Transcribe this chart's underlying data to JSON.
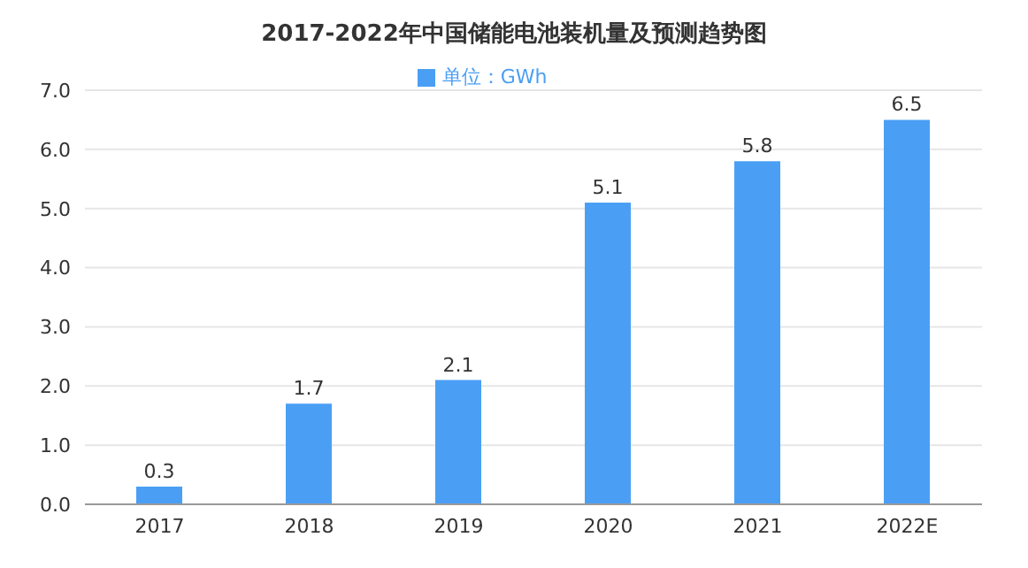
{
  "chart_data": {
    "type": "bar",
    "title": "2017-2022年中国储能电池装机量及预测趋势图",
    "categories": [
      "2017",
      "2018",
      "2019",
      "2020",
      "2021",
      "2022E"
    ],
    "series": [
      {
        "name": "单位：GWh",
        "color": "#4a9ff5",
        "values": [
          0.3,
          1.7,
          2.1,
          5.1,
          5.8,
          6.5
        ]
      }
    ],
    "ylim": [
      0,
      7
    ],
    "yticks": [
      {
        "value": 0,
        "label": "0.0"
      },
      {
        "value": 1,
        "label": "1.0"
      },
      {
        "value": 2,
        "label": "2.0"
      },
      {
        "value": 3,
        "label": "3.0"
      },
      {
        "value": 4,
        "label": "4.0"
      },
      {
        "value": 5,
        "label": "5.0"
      },
      {
        "value": 6,
        "label": "6.0"
      },
      {
        "value": 7,
        "label": "7.0"
      }
    ],
    "grid": "y",
    "legend": "top",
    "data_labels": true
  }
}
